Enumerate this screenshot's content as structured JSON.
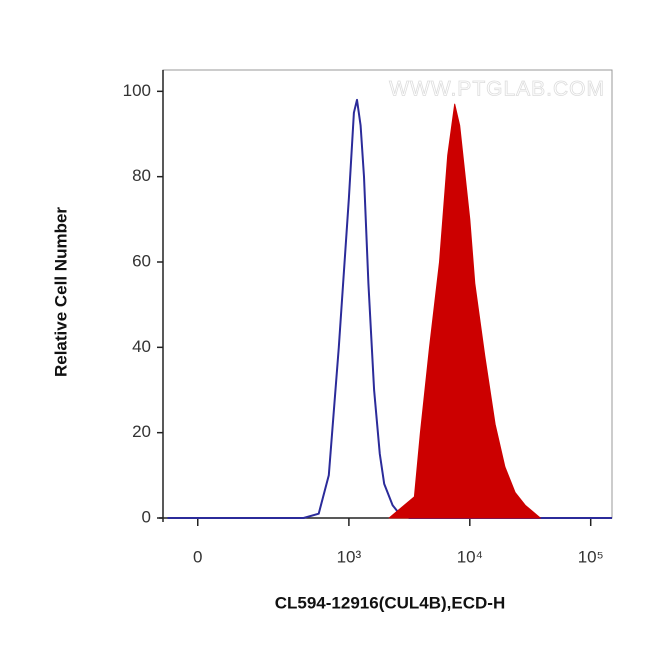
{
  "chart_data": {
    "type": "histogram",
    "x_label": "CL594-12916(CUL4B),ECD-H",
    "y_label": "Relative Cell Number",
    "watermark": "WWW.PTGLAB.COM",
    "xscale": "biexponential",
    "xlim": [
      -230,
      150000
    ],
    "xticks": [
      0,
      {
        "value": 1000,
        "label": "10³"
      },
      {
        "value": 10000,
        "label": "10⁴"
      },
      {
        "value": 100000,
        "label": "10⁵"
      }
    ],
    "ylim": [
      0,
      105
    ],
    "yticks": [
      0,
      20,
      40,
      60,
      80,
      100
    ],
    "series": [
      {
        "color": "#2b2b9a",
        "fill": false,
        "x": [
          -200,
          700,
          800,
          867,
          933,
          1000,
          1100,
          1166,
          1250,
          1334,
          1450,
          1616,
          1800,
          1958,
          2300,
          2610,
          3162,
          150000
        ],
        "values": [
          0,
          0,
          1,
          10,
          40,
          75,
          95,
          98,
          92,
          80,
          55,
          30,
          15,
          8,
          3,
          1,
          0,
          0
        ]
      },
      {
        "color": "#cc0000",
        "fill": true,
        "x": [
          2150,
          3480,
          3900,
          4640,
          5620,
          6560,
          7500,
          8250,
          10000,
          11000,
          13300,
          16200,
          19500,
          23700,
          28700,
          38300
        ],
        "values": [
          0,
          5,
          20,
          40,
          60,
          85,
          97,
          92,
          70,
          55,
          38,
          22,
          12,
          6,
          3,
          0
        ]
      }
    ]
  }
}
